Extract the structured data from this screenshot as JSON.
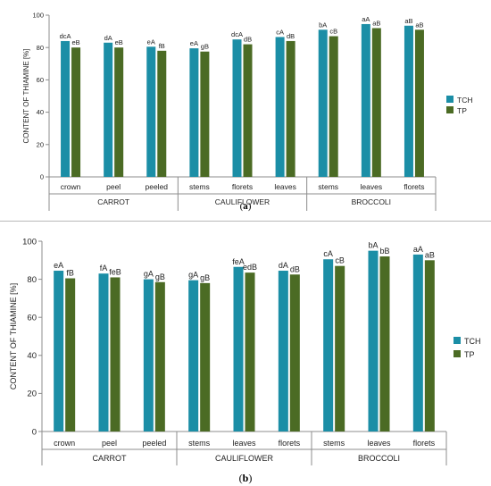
{
  "chart_data": [
    {
      "panel": "(a)",
      "type": "bar",
      "ylabel": "CONTENT OF  THIAMINE [%]",
      "ylim": [
        0,
        100
      ],
      "yticks": [
        "0",
        "20",
        "40",
        "60",
        "80",
        "100"
      ],
      "grid": false,
      "legend": "right",
      "series": [
        {
          "name": "TCH",
          "color": "#1b8ea6"
        },
        {
          "name": "TP",
          "color": "#4b6b24"
        }
      ],
      "groups": [
        {
          "label": "CARROT",
          "categories": [
            {
              "label": "crown",
              "values": [
                84,
                80
              ],
              "marks": [
                "dcA",
                "eB"
              ]
            },
            {
              "label": "peel",
              "values": [
                83,
                80
              ],
              "marks": [
                "dA",
                "eB"
              ]
            },
            {
              "label": "peeled",
              "values": [
                80.5,
                78
              ],
              "marks": [
                "eA",
                "fB"
              ]
            }
          ]
        },
        {
          "label": "CAULIFLOWER",
          "categories": [
            {
              "label": "stems",
              "values": [
                79.5,
                77.5
              ],
              "marks": [
                "eA",
                "gB"
              ]
            },
            {
              "label": "florets",
              "values": [
                85,
                82
              ],
              "marks": [
                "dcA",
                "dB"
              ]
            },
            {
              "label": "leaves",
              "values": [
                86.5,
                84
              ],
              "marks": [
                "cA",
                "dB"
              ]
            }
          ]
        },
        {
          "label": "BROCCOLI",
          "categories": [
            {
              "label": "stems",
              "values": [
                91,
                87
              ],
              "marks": [
                "bA",
                "cB"
              ]
            },
            {
              "label": "leaves",
              "values": [
                94.5,
                92
              ],
              "marks": [
                "aA",
                "aB"
              ]
            },
            {
              "label": "florets",
              "values": [
                93.5,
                91
              ],
              "marks": [
                "aB",
                "aB"
              ]
            }
          ]
        }
      ]
    },
    {
      "panel": "(b)",
      "type": "bar",
      "ylabel": "CONTENT OF  THIAMINE [%]",
      "ylim": [
        0,
        100
      ],
      "yticks": [
        "0",
        "20",
        "40",
        "60",
        "80",
        "100"
      ],
      "grid": false,
      "legend": "right",
      "series": [
        {
          "name": "TCH",
          "color": "#1b8ea6"
        },
        {
          "name": "TP",
          "color": "#4b6b24"
        }
      ],
      "groups": [
        {
          "label": "CARROT",
          "categories": [
            {
              "label": "crown",
              "values": [
                84.5,
                80.5
              ],
              "marks": [
                "eA",
                "fB"
              ]
            },
            {
              "label": "peel",
              "values": [
                83,
                81
              ],
              "marks": [
                "fA",
                "feB"
              ]
            },
            {
              "label": "peeled",
              "values": [
                80,
                78.5
              ],
              "marks": [
                "gA",
                "gB"
              ]
            }
          ]
        },
        {
          "label": "CAULIFLOWER",
          "categories": [
            {
              "label": "stems",
              "values": [
                79.5,
                78
              ],
              "marks": [
                "gA",
                "gB"
              ]
            },
            {
              "label": "leaves",
              "values": [
                86.5,
                83.5
              ],
              "marks": [
                "feA",
                "edB"
              ]
            },
            {
              "label": "florets",
              "values": [
                84.5,
                82.5
              ],
              "marks": [
                "dA",
                "dB"
              ]
            }
          ]
        },
        {
          "label": "BROCCOLI",
          "categories": [
            {
              "label": "stems",
              "values": [
                90.5,
                87
              ],
              "marks": [
                "cA",
                "cB"
              ]
            },
            {
              "label": "leaves",
              "values": [
                95,
                92
              ],
              "marks": [
                "bA",
                "bB"
              ]
            },
            {
              "label": "florets",
              "values": [
                93,
                90
              ],
              "marks": [
                "aA",
                "aB"
              ]
            }
          ]
        }
      ]
    }
  ]
}
